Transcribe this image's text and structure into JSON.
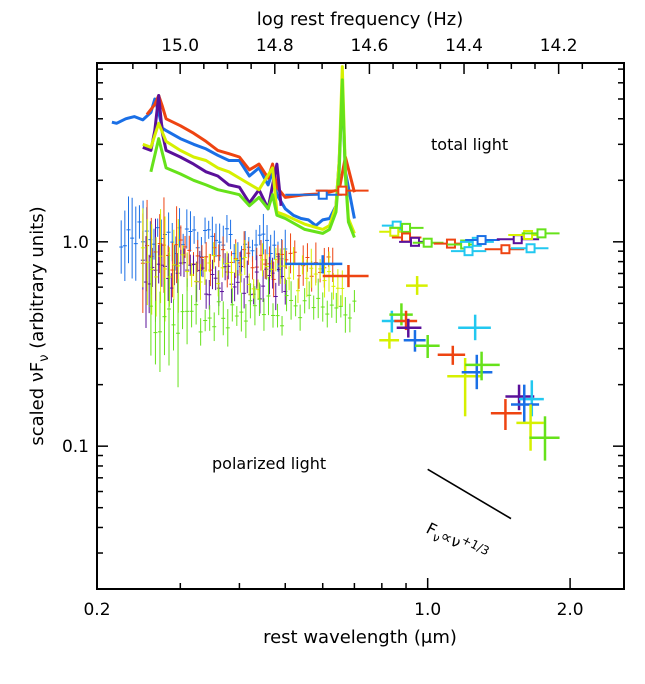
{
  "chart_data": {
    "type": "scatter",
    "xscale": "log",
    "yscale": "log",
    "xlim": [
      0.2,
      2.6
    ],
    "ylim": [
      0.02,
      7.5
    ],
    "xlabel": "rest wavelength (μm)",
    "ylabel": "scaled νF",
    "ylabel_sub": "ν",
    "ylabel_tail": " (arbitrary units)",
    "top_xlabel": "log rest frequency (Hz)",
    "x_ticks": [
      0.2,
      1.0,
      2.0
    ],
    "x_tick_labels": [
      "0.2",
      "1.0",
      "2.0"
    ],
    "y_ticks": [
      0.1,
      1.0
    ],
    "y_tick_labels": [
      "0.1",
      "1.0"
    ],
    "top_ticks": [
      15.0,
      14.8,
      14.6,
      14.4,
      14.2
    ],
    "top_tick_labels": [
      "15.0",
      "14.8",
      "14.6",
      "14.4",
      "14.2"
    ],
    "annotations": {
      "total": "total light",
      "polarized": "polarized light",
      "slope_main": "F",
      "slope_sub": "ν",
      "slope_prop": "∝ν",
      "slope_exp": "+1/3"
    },
    "colors": {
      "orange": "#ee4411",
      "blue": "#1a6fe6",
      "purple": "#5a109a",
      "yellow": "#d6f000",
      "green": "#66e21a",
      "cyan": "#22c8f0"
    },
    "spectra_total": [
      {
        "name": "blue",
        "color": "#1a6fe6",
        "x": [
          0.215,
          0.22,
          0.23,
          0.24,
          0.25,
          0.26,
          0.265,
          0.27,
          0.275,
          0.28,
          0.3,
          0.32,
          0.34,
          0.36,
          0.38,
          0.4,
          0.42,
          0.44,
          0.46,
          0.47,
          0.48,
          0.5,
          0.52,
          0.54,
          0.56,
          0.58,
          0.6,
          0.62,
          0.64,
          0.65,
          0.66,
          0.67,
          0.7
        ],
        "y": [
          3.85,
          3.8,
          4.0,
          4.1,
          3.95,
          4.3,
          5.0,
          4.3,
          3.6,
          3.5,
          3.2,
          3.0,
          2.85,
          2.65,
          2.5,
          2.5,
          2.1,
          2.3,
          1.9,
          2.2,
          1.7,
          1.45,
          1.35,
          1.3,
          1.28,
          1.2,
          1.28,
          1.3,
          1.5,
          2.5,
          5.5,
          2.2,
          1.3
        ]
      },
      {
        "name": "orange",
        "color": "#ee4411",
        "x": [
          0.255,
          0.265,
          0.27,
          0.275,
          0.28,
          0.3,
          0.32,
          0.34,
          0.36,
          0.38,
          0.4,
          0.42,
          0.44,
          0.46,
          0.47,
          0.48,
          0.5,
          0.55,
          0.6,
          0.65,
          0.67,
          0.7
        ],
        "y": [
          4.2,
          4.7,
          5.2,
          4.6,
          4.0,
          3.7,
          3.4,
          3.1,
          2.8,
          2.7,
          2.6,
          2.25,
          2.4,
          2.05,
          2.4,
          1.85,
          1.65,
          1.7,
          1.72,
          1.8,
          2.6,
          1.75
        ]
      },
      {
        "name": "purple",
        "color": "#5a109a",
        "x": [
          0.25,
          0.26,
          0.265,
          0.27,
          0.275,
          0.28,
          0.3,
          0.32,
          0.34,
          0.36,
          0.38,
          0.4,
          0.42,
          0.44,
          0.46,
          0.47,
          0.48,
          0.49
        ],
        "y": [
          2.9,
          2.8,
          3.5,
          5.2,
          3.4,
          2.8,
          2.6,
          2.4,
          2.2,
          2.1,
          1.9,
          1.85,
          1.55,
          1.8,
          1.45,
          1.9,
          2.4,
          1.5
        ]
      },
      {
        "name": "yellow",
        "color": "#d6f000",
        "x": [
          0.25,
          0.26,
          0.27,
          0.28,
          0.3,
          0.32,
          0.34,
          0.36,
          0.38,
          0.4,
          0.44,
          0.47,
          0.48,
          0.5,
          0.55,
          0.6,
          0.62,
          0.64,
          0.65,
          0.66,
          0.67,
          0.68,
          0.7
        ],
        "y": [
          3.0,
          2.9,
          3.8,
          3.1,
          2.8,
          2.6,
          2.5,
          2.3,
          2.2,
          2.05,
          1.8,
          2.3,
          1.4,
          1.35,
          1.22,
          1.15,
          1.2,
          1.5,
          2.5,
          7.2,
          2.2,
          1.3,
          1.1
        ]
      },
      {
        "name": "green",
        "color": "#66e21a",
        "x": [
          0.26,
          0.27,
          0.28,
          0.3,
          0.32,
          0.34,
          0.36,
          0.38,
          0.4,
          0.42,
          0.44,
          0.46,
          0.47,
          0.48,
          0.5,
          0.55,
          0.6,
          0.62,
          0.64,
          0.65,
          0.66,
          0.67,
          0.68,
          0.7
        ],
        "y": [
          2.2,
          3.2,
          2.3,
          2.15,
          2.0,
          1.9,
          1.8,
          1.75,
          1.7,
          1.5,
          1.65,
          1.45,
          1.7,
          1.35,
          1.3,
          1.15,
          1.1,
          1.15,
          1.4,
          2.2,
          6.2,
          2.1,
          1.25,
          1.05
        ]
      }
    ],
    "spectra_polarized": [
      {
        "name": "blue",
        "color": "#1a6fe6",
        "x0": 0.225,
        "x1": 0.5,
        "y_start": 1.15,
        "y_end": 0.9
      },
      {
        "name": "orange",
        "color": "#ee4411",
        "x0": 0.25,
        "x1": 0.63,
        "y_start": 0.9,
        "y_end": 0.75
      },
      {
        "name": "purple",
        "color": "#5a109a",
        "x0": 0.25,
        "x1": 0.5,
        "y_start": 0.72,
        "y_end": 0.62
      },
      {
        "name": "yellow",
        "color": "#d6f000",
        "x0": 0.25,
        "x1": 0.66,
        "y_start": 0.8,
        "y_end": 0.65
      },
      {
        "name": "green",
        "color": "#66e21a",
        "x0": 0.26,
        "x1": 0.7,
        "y_start": 0.42,
        "y_end": 0.5
      }
    ],
    "photometry_total": [
      {
        "color": "#1a6fe6",
        "x": 0.6,
        "xlo": 0.5,
        "xhi": 0.66,
        "y": 1.7
      },
      {
        "color": "#ee4411",
        "x": 0.66,
        "xlo": 0.58,
        "xhi": 0.75,
        "y": 1.78
      },
      {
        "color": "#22c8f0",
        "x": 0.86,
        "xlo": 0.8,
        "xhi": 0.92,
        "y": 1.2
      },
      {
        "color": "#d6f000",
        "x": 0.85,
        "xlo": 0.79,
        "xhi": 0.91,
        "y": 1.12
      },
      {
        "color": "#66e21a",
        "x": 0.9,
        "xlo": 0.83,
        "xhi": 0.98,
        "y": 1.17
      },
      {
        "color": "#ee4411",
        "x": 0.9,
        "xlo": 0.84,
        "xhi": 0.97,
        "y": 1.05
      },
      {
        "color": "#5a109a",
        "x": 0.94,
        "xlo": 0.87,
        "xhi": 1.01,
        "y": 1.0
      },
      {
        "color": "#66e21a",
        "x": 1.0,
        "xlo": 0.93,
        "xhi": 1.08,
        "y": 0.99
      },
      {
        "color": "#ee4411",
        "x": 1.12,
        "xlo": 1.03,
        "xhi": 1.22,
        "y": 0.98
      },
      {
        "color": "#66e21a",
        "x": 1.2,
        "xlo": 1.1,
        "xhi": 1.3,
        "y": 0.97
      },
      {
        "color": "#22c8f0",
        "x": 1.22,
        "xlo": 1.12,
        "xhi": 1.33,
        "y": 0.9
      },
      {
        "color": "#22c8f0",
        "x": 1.27,
        "xlo": 1.17,
        "xhi": 1.38,
        "y": 1.0
      },
      {
        "color": "#1a6fe6",
        "x": 1.3,
        "xlo": 1.2,
        "xhi": 1.42,
        "y": 1.02
      },
      {
        "color": "#ee4411",
        "x": 1.46,
        "xlo": 1.32,
        "xhi": 1.6,
        "y": 0.92
      },
      {
        "color": "#5a109a",
        "x": 1.55,
        "xlo": 1.4,
        "xhi": 1.72,
        "y": 1.03
      },
      {
        "color": "#22c8f0",
        "x": 1.65,
        "xlo": 1.5,
        "xhi": 1.8,
        "y": 0.93
      },
      {
        "color": "#d6f000",
        "x": 1.63,
        "xlo": 1.48,
        "xhi": 1.78,
        "y": 1.08
      },
      {
        "color": "#66e21a",
        "x": 1.74,
        "xlo": 1.58,
        "xhi": 1.9,
        "y": 1.1
      }
    ],
    "photometry_polarized": [
      {
        "color": "#1a6fe6",
        "x": 0.6,
        "xlo": 0.5,
        "xhi": 0.66,
        "y": 0.78,
        "ylo": 0.7,
        "yhi": 0.86
      },
      {
        "color": "#ee4411",
        "x": 0.68,
        "xlo": 0.6,
        "xhi": 0.75,
        "y": 0.68,
        "ylo": 0.6,
        "yhi": 0.77
      },
      {
        "color": "#d6f000",
        "x": 0.83,
        "xlo": 0.79,
        "xhi": 0.87,
        "y": 0.33,
        "ylo": 0.3,
        "yhi": 0.36
      },
      {
        "color": "#22c8f0",
        "x": 0.84,
        "xlo": 0.8,
        "xhi": 0.89,
        "y": 0.41,
        "ylo": 0.36,
        "yhi": 0.46
      },
      {
        "color": "#66e21a",
        "x": 0.88,
        "xlo": 0.83,
        "xhi": 0.93,
        "y": 0.44,
        "ylo": 0.39,
        "yhi": 0.5
      },
      {
        "color": "#ee4411",
        "x": 0.9,
        "xlo": 0.85,
        "xhi": 0.95,
        "y": 0.41,
        "ylo": 0.37,
        "yhi": 0.46
      },
      {
        "color": "#5a109a",
        "x": 0.91,
        "xlo": 0.86,
        "xhi": 0.97,
        "y": 0.38,
        "ylo": 0.34,
        "yhi": 0.42
      },
      {
        "color": "#d6f000",
        "x": 0.95,
        "xlo": 0.9,
        "xhi": 1.0,
        "y": 0.61,
        "ylo": 0.55,
        "yhi": 0.68
      },
      {
        "color": "#1a6fe6",
        "x": 0.94,
        "xlo": 0.89,
        "xhi": 0.99,
        "y": 0.33,
        "ylo": 0.29,
        "yhi": 0.37
      },
      {
        "color": "#66e21a",
        "x": 1.0,
        "xlo": 0.94,
        "xhi": 1.06,
        "y": 0.31,
        "ylo": 0.27,
        "yhi": 0.35
      },
      {
        "color": "#ee4411",
        "x": 1.13,
        "xlo": 1.05,
        "xhi": 1.2,
        "y": 0.28,
        "ylo": 0.25,
        "yhi": 0.31
      },
      {
        "color": "#22c8f0",
        "x": 1.26,
        "xlo": 1.16,
        "xhi": 1.36,
        "y": 0.38,
        "ylo": 0.33,
        "yhi": 0.44
      },
      {
        "color": "#d6f000",
        "x": 1.2,
        "xlo": 1.1,
        "xhi": 1.3,
        "y": 0.22,
        "ylo": 0.14,
        "yhi": 0.27
      },
      {
        "color": "#1a6fe6",
        "x": 1.27,
        "xlo": 1.18,
        "xhi": 1.37,
        "y": 0.23,
        "ylo": 0.19,
        "yhi": 0.28
      },
      {
        "color": "#66e21a",
        "x": 1.3,
        "xlo": 1.2,
        "xhi": 1.42,
        "y": 0.25,
        "ylo": 0.21,
        "yhi": 0.29
      },
      {
        "color": "#ee4411",
        "x": 1.46,
        "xlo": 1.36,
        "xhi": 1.58,
        "y": 0.145,
        "ylo": 0.12,
        "yhi": 0.17
      },
      {
        "color": "#5a109a",
        "x": 1.56,
        "xlo": 1.46,
        "xhi": 1.68,
        "y": 0.175,
        "ylo": 0.15,
        "yhi": 0.2
      },
      {
        "color": "#22c8f0",
        "x": 1.66,
        "xlo": 1.56,
        "xhi": 1.76,
        "y": 0.17,
        "ylo": 0.14,
        "yhi": 0.21
      },
      {
        "color": "#1a6fe6",
        "x": 1.6,
        "xlo": 1.5,
        "xhi": 1.72,
        "y": 0.16,
        "ylo": 0.13,
        "yhi": 0.2
      },
      {
        "color": "#d6f000",
        "x": 1.65,
        "xlo": 1.54,
        "xhi": 1.76,
        "y": 0.13,
        "ylo": 0.095,
        "yhi": 0.16
      },
      {
        "color": "#66e21a",
        "x": 1.77,
        "xlo": 1.64,
        "xhi": 1.9,
        "y": 0.11,
        "ylo": 0.085,
        "yhi": 0.14
      }
    ],
    "slope_line": {
      "x0": 1.0,
      "y0": 0.077,
      "x1": 1.5,
      "y1": 0.0442
    }
  }
}
